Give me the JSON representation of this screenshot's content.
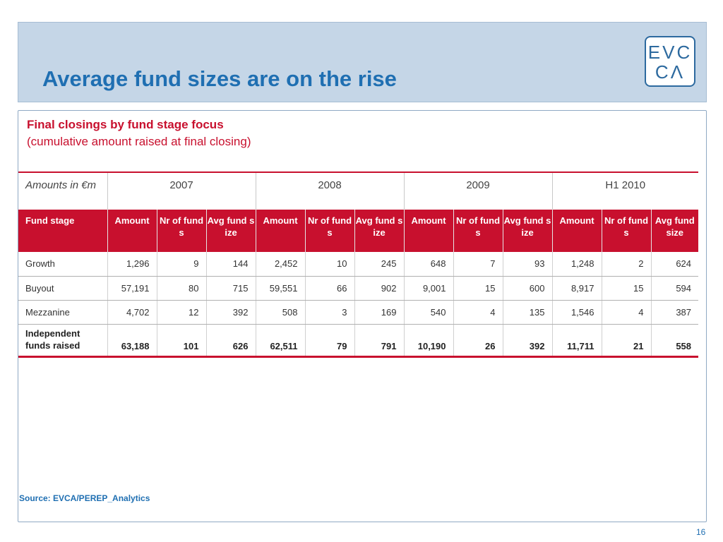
{
  "slide": {
    "title": "Average fund sizes are on the rise",
    "logo": {
      "line1": "EVC",
      "line2": "CΛ"
    },
    "subtitle": "Final closings by fund stage focus",
    "subtitle_note": "(cumulative amount raised at final closing)",
    "source": "Source: EVCA/PEREP_Analytics",
    "page_number": "16"
  },
  "table": {
    "amounts_label": "Amounts in €m",
    "years": [
      "2007",
      "2008",
      "2009",
      "H1 2010"
    ],
    "columns": [
      "Fund stage",
      "Amount",
      "Nr of funds",
      "Avg fund size",
      "Amount",
      "Nr of funds",
      "Avg fund size",
      "Amount",
      "Nr of funds",
      "Avg fund size",
      "Amount",
      "Nr of funds",
      "Avg fund size"
    ],
    "rows": [
      [
        "Growth",
        "1,296",
        "9",
        "144",
        "2,452",
        "10",
        "245",
        "648",
        "7",
        "93",
        "1,248",
        "2",
        "624"
      ],
      [
        "Buyout",
        "57,191",
        "80",
        "715",
        "59,551",
        "66",
        "902",
        "9,001",
        "15",
        "600",
        "8,917",
        "15",
        "594"
      ],
      [
        "Mezzanine",
        "4,702",
        "12",
        "392",
        "508",
        "3",
        "169",
        "540",
        "4",
        "135",
        "1,546",
        "4",
        "387"
      ]
    ],
    "total": [
      "Independent funds raised",
      "63,188",
      "101",
      "626",
      "62,511",
      "79",
      "791",
      "10,190",
      "26",
      "392",
      "11,711",
      "21",
      "558"
    ]
  },
  "colors": {
    "title_blue": "#1f6fb2",
    "accent_red": "#c8102e",
    "header_band": "#c5d6e7"
  }
}
